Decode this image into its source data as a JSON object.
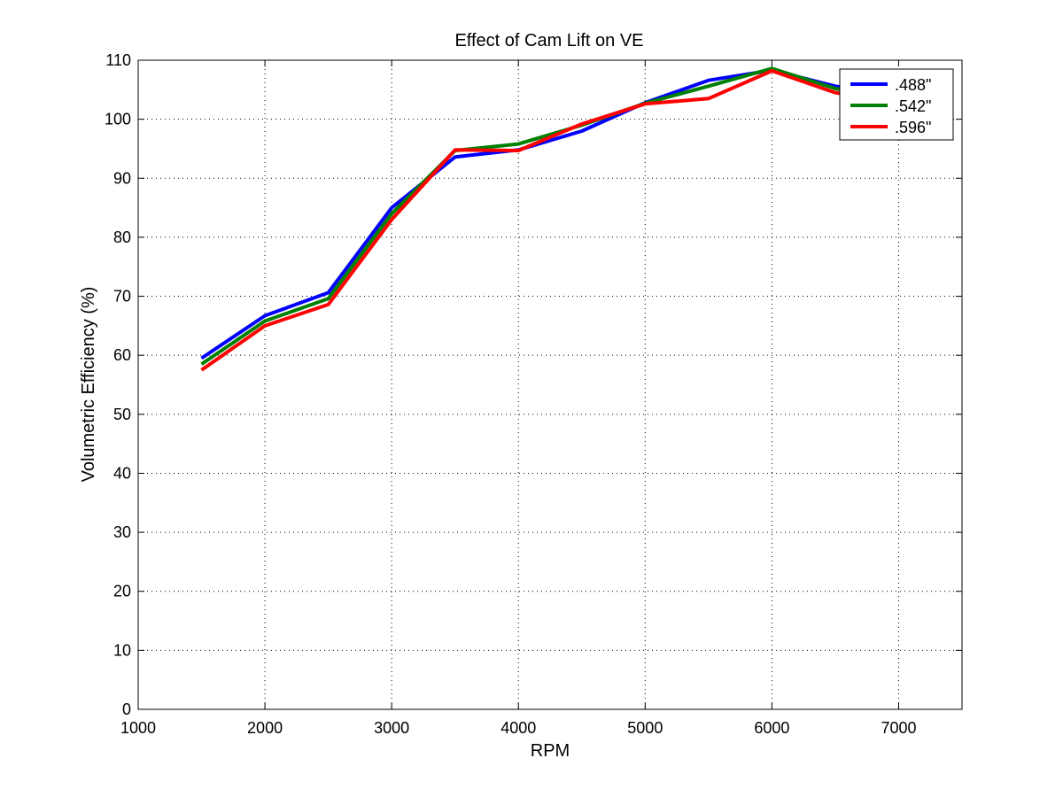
{
  "chart_data": {
    "type": "line",
    "title": "Effect of Cam Lift on VE",
    "xlabel": "RPM",
    "ylabel": "Volumetric Efficiency (%)",
    "xlim": [
      1000,
      7500
    ],
    "ylim": [
      0,
      110
    ],
    "xticks": [
      1000,
      2000,
      3000,
      4000,
      5000,
      6000,
      7000
    ],
    "yticks": [
      0,
      10,
      20,
      30,
      40,
      50,
      60,
      70,
      80,
      90,
      100,
      110
    ],
    "grid": true,
    "legend_position": "top-right",
    "x": [
      1500,
      2000,
      2500,
      3000,
      3500,
      4000,
      4500,
      5000,
      5500,
      6000,
      6500,
      7000
    ],
    "series": [
      {
        "name": ".488\"",
        "color": "#0000ff",
        "values": [
          59.5,
          66.7,
          70.6,
          85.0,
          93.6,
          94.8,
          98.0,
          102.8,
          106.6,
          108.3,
          105.6,
          104.0
        ]
      },
      {
        "name": ".542\"",
        "color": "#008000",
        "values": [
          58.5,
          65.8,
          69.6,
          84.0,
          94.7,
          95.8,
          99.0,
          102.7,
          105.6,
          108.6,
          105.2,
          103.5
        ]
      },
      {
        "name": ".596\"",
        "color": "#ff0000",
        "values": [
          57.5,
          65.0,
          68.6,
          83.0,
          94.8,
          94.7,
          99.2,
          102.6,
          103.5,
          108.2,
          104.5,
          103.0
        ]
      }
    ]
  }
}
